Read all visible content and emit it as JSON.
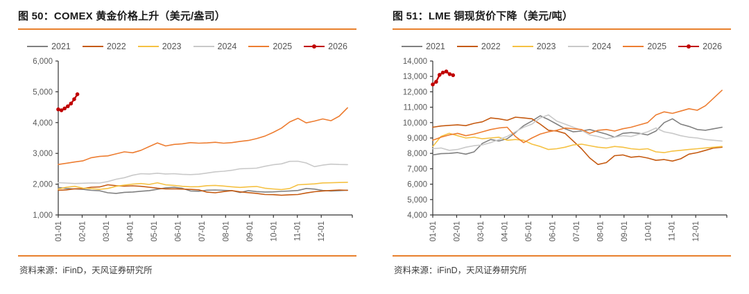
{
  "page": {
    "background": "#ffffff",
    "accent_color": "#E8802C"
  },
  "chart_data": [
    {
      "type": "line",
      "title": "图 50：COMEX 黄金价格上升（美元/盎司）",
      "source_note": "资料来源：iFinD，天风证券研究所",
      "xlabel": "",
      "ylabel": "",
      "ylim": [
        1000,
        6000
      ],
      "y_tick_step": 1000,
      "y_tick_labels": [
        "1,000",
        "2,000",
        "3,000",
        "4,000",
        "5,000",
        "6,000"
      ],
      "x_tick_labels": [
        "01-01",
        "02-01",
        "03-01",
        "04-01",
        "05-01",
        "06-01",
        "07-01",
        "08-01",
        "09-01",
        "10-01",
        "11-01",
        "12-01"
      ],
      "x_domain_months": 12.3,
      "grid": false,
      "legend_position": "top",
      "series": [
        {
          "name": "2021",
          "color": "#808080",
          "marker": false,
          "x_end": 12.1,
          "values": [
            1895,
            1860,
            1845,
            1830,
            1800,
            1785,
            1720,
            1700,
            1735,
            1745,
            1770,
            1790,
            1835,
            1880,
            1900,
            1865,
            1780,
            1770,
            1805,
            1810,
            1800,
            1790,
            1730,
            1790,
            1760,
            1745,
            1750,
            1765,
            1780,
            1795,
            1860,
            1840,
            1795,
            1780,
            1790,
            1805
          ]
        },
        {
          "name": "2022",
          "color": "#C55A11",
          "marker": false,
          "x_end": 12.1,
          "values": [
            1800,
            1815,
            1850,
            1855,
            1900,
            1910,
            1980,
            1950,
            1935,
            1945,
            1930,
            1900,
            1870,
            1845,
            1850,
            1840,
            1830,
            1815,
            1740,
            1720,
            1760,
            1790,
            1750,
            1725,
            1700,
            1665,
            1660,
            1640,
            1655,
            1665,
            1715,
            1755,
            1780,
            1795,
            1810,
            1800
          ]
        },
        {
          "name": "2023",
          "color": "#F5C142",
          "marker": false,
          "x_end": 12.1,
          "values": [
            1840,
            1900,
            1930,
            1870,
            1855,
            1830,
            1860,
            1930,
            1970,
            2000,
            2020,
            1990,
            2045,
            1980,
            1960,
            1930,
            1915,
            1920,
            1950,
            1960,
            1940,
            1915,
            1895,
            1915,
            1925,
            1870,
            1845,
            1825,
            1860,
            1980,
            1995,
            2010,
            2040,
            2045,
            2055,
            2060
          ]
        },
        {
          "name": "2024",
          "color": "#C9C9C9",
          "marker": false,
          "x_end": 12.1,
          "values": [
            2050,
            2035,
            2020,
            2030,
            2040,
            2035,
            2085,
            2160,
            2210,
            2290,
            2340,
            2330,
            2355,
            2330,
            2340,
            2320,
            2310,
            2325,
            2360,
            2400,
            2420,
            2450,
            2500,
            2510,
            2520,
            2580,
            2630,
            2660,
            2740,
            2745,
            2690,
            2570,
            2620,
            2650,
            2640,
            2635
          ]
        },
        {
          "name": "2025",
          "color": "#ED7D31",
          "marker": false,
          "x_end": 12.1,
          "values": [
            2640,
            2680,
            2720,
            2760,
            2860,
            2900,
            2920,
            2985,
            3050,
            3020,
            3100,
            3220,
            3340,
            3240,
            3290,
            3310,
            3350,
            3330,
            3340,
            3360,
            3330,
            3350,
            3390,
            3420,
            3480,
            3560,
            3680,
            3820,
            4020,
            4140,
            3990,
            4050,
            4120,
            4060,
            4210,
            4480
          ]
        },
        {
          "name": "2026",
          "color": "#C00000",
          "marker": true,
          "x_end": 0.8,
          "values": [
            4430,
            4400,
            4460,
            4530,
            4620,
            4760,
            4920
          ]
        }
      ]
    },
    {
      "type": "line",
      "title": "图 51：LME 铜现货价下降（美元/吨）",
      "source_note": "资料来源：iFinD，天风证券研究所",
      "xlabel": "",
      "ylabel": "",
      "ylim": [
        4000,
        14000
      ],
      "y_tick_step": 1000,
      "y_tick_labels": [
        "4,000",
        "5,000",
        "6,000",
        "7,000",
        "8,000",
        "9,000",
        "10,000",
        "11,000",
        "12,000",
        "13,000",
        "14,000"
      ],
      "x_tick_labels": [
        "01-01",
        "02-01",
        "03-01",
        "04-01",
        "05-01",
        "06-01",
        "07-01",
        "08-01",
        "09-01",
        "10-01",
        "11-01",
        "12-01"
      ],
      "x_domain_months": 12.3,
      "grid": false,
      "legend_position": "top",
      "series": [
        {
          "name": "2021",
          "color": "#808080",
          "marker": false,
          "x_end": 12.1,
          "values": [
            7900,
            7980,
            8000,
            8050,
            7950,
            8100,
            8650,
            8900,
            8800,
            8950,
            9350,
            9800,
            10100,
            10440,
            10200,
            9900,
            9600,
            9400,
            9450,
            9550,
            9400,
            9250,
            9050,
            9300,
            9350,
            9300,
            9200,
            9450,
            10000,
            10250,
            9900,
            9750,
            9550,
            9500,
            9600,
            9700
          ]
        },
        {
          "name": "2022",
          "color": "#C55A11",
          "marker": false,
          "x_end": 12.1,
          "values": [
            9700,
            9780,
            9820,
            9850,
            9800,
            9950,
            10050,
            10300,
            10250,
            10150,
            10350,
            10300,
            10250,
            9900,
            9500,
            9450,
            9300,
            8800,
            8300,
            7700,
            7280,
            7400,
            7850,
            7900,
            7750,
            7800,
            7700,
            7550,
            7600,
            7500,
            7650,
            7950,
            8050,
            8200,
            8350,
            8400
          ]
        },
        {
          "name": "2023",
          "color": "#F5C142",
          "marker": false,
          "x_end": 12.1,
          "values": [
            8450,
            9100,
            9300,
            9150,
            9000,
            9050,
            8950,
            9000,
            9050,
            8850,
            8900,
            8850,
            8600,
            8450,
            8250,
            8300,
            8400,
            8550,
            8600,
            8500,
            8400,
            8350,
            8450,
            8400,
            8300,
            8250,
            8300,
            8100,
            8050,
            8150,
            8200,
            8250,
            8300,
            8350,
            8400,
            8450
          ]
        },
        {
          "name": "2024",
          "color": "#C9C9C9",
          "marker": false,
          "x_end": 12.1,
          "values": [
            8300,
            8350,
            8200,
            8250,
            8400,
            8500,
            8550,
            8700,
            8900,
            9100,
            9400,
            9700,
            9900,
            10300,
            10500,
            10100,
            9900,
            9700,
            9500,
            9200,
            9100,
            8950,
            9050,
            9150,
            9100,
            9250,
            9400,
            9650,
            9400,
            9300,
            9150,
            9050,
            9000,
            8900,
            8850,
            8800
          ]
        },
        {
          "name": "2025",
          "color": "#ED7D31",
          "marker": false,
          "x_end": 12.1,
          "values": [
            8850,
            9050,
            9200,
            9300,
            9150,
            9250,
            9400,
            9550,
            9650,
            9700,
            9100,
            8700,
            9000,
            9250,
            9400,
            9500,
            9650,
            9600,
            9550,
            9300,
            9500,
            9550,
            9450,
            9600,
            9700,
            9850,
            10000,
            10500,
            10700,
            10600,
            10750,
            10900,
            10800,
            11100,
            11600,
            12100
          ]
        },
        {
          "name": "2026",
          "color": "#C00000",
          "marker": true,
          "x_end": 0.85,
          "values": [
            12480,
            12650,
            13100,
            13250,
            13320,
            13150,
            13080
          ]
        }
      ]
    }
  ]
}
